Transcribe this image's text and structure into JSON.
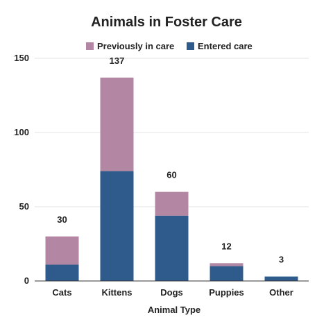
{
  "chart_data": {
    "type": "bar",
    "stacked": true,
    "title": "Animals in Foster Care",
    "xlabel": "Animal Type",
    "ylabel": "",
    "categories": [
      "Cats",
      "Kittens",
      "Dogs",
      "Puppies",
      "Other"
    ],
    "series": [
      {
        "name": "Entered care",
        "values": [
          11,
          74,
          44,
          10,
          3
        ],
        "color": "#2e5b8b"
      },
      {
        "name": "Previously in care",
        "values": [
          19,
          63,
          16,
          2,
          0
        ],
        "color": "#b386a3"
      }
    ],
    "totals": [
      "30",
      "137",
      "60",
      "12",
      "3"
    ],
    "ylim": [
      0,
      150
    ],
    "yticks": [
      "0",
      "50",
      "100",
      "150"
    ],
    "grid": true,
    "legend": {
      "position": "top",
      "items": [
        "Previously in care",
        "Entered care"
      ]
    }
  }
}
